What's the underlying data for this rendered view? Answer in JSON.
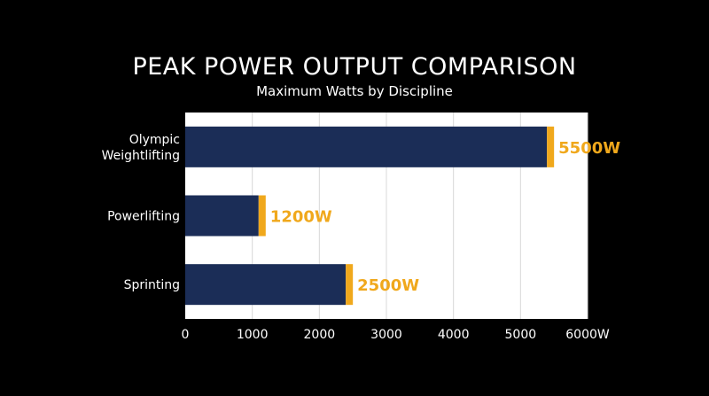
{
  "chart_data": {
    "type": "bar",
    "orientation": "horizontal",
    "title": "PEAK POWER OUTPUT COMPARISON",
    "subtitle": "Maximum Watts by Discipline",
    "categories": [
      "Olympic Weightlifting",
      "Powerlifting",
      "Sprinting"
    ],
    "category_lines": [
      [
        "Olympic",
        "Weightlifting"
      ],
      [
        "Powerlifting"
      ],
      [
        "Sprinting"
      ]
    ],
    "values": [
      5500,
      1200,
      2500
    ],
    "value_labels": [
      "5500W",
      "1200W",
      "2500W"
    ],
    "xlim": [
      0,
      6000
    ],
    "x_ticks": [
      0,
      1000,
      2000,
      3000,
      4000,
      5000,
      6000
    ],
    "x_tick_labels": [
      "0",
      "1000",
      "2000",
      "3000",
      "4000",
      "5000",
      "6000W"
    ],
    "grid": "vertical",
    "colors": {
      "plot_background": "#ffffff",
      "bar": "#1b2d57",
      "bar_cap": "#f0a81c",
      "value_label": "#f0a81c",
      "grid": "#d8d8d8",
      "text": "#ffffff"
    }
  }
}
